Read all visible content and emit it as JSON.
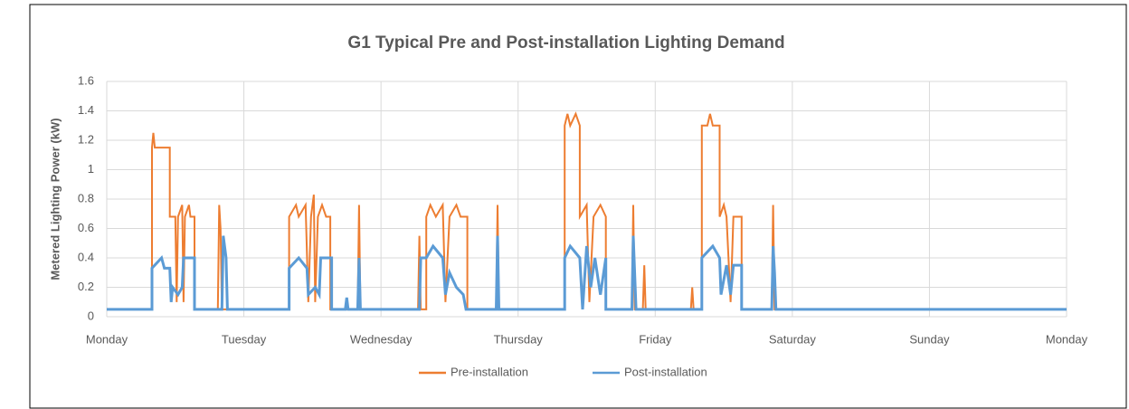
{
  "chart_data": {
    "type": "line",
    "title": "G1 Typical Pre and Post-installation Lighting Demand",
    "ylabel": "Metered Lighting Power (kW)",
    "xlim": [
      0,
      7
    ],
    "ylim": [
      0,
      1.6
    ],
    "xticks": [
      {
        "value": 0,
        "label": "Monday"
      },
      {
        "value": 1,
        "label": "Tuesday"
      },
      {
        "value": 2,
        "label": "Wednesday"
      },
      {
        "value": 3,
        "label": "Thursday"
      },
      {
        "value": 4,
        "label": "Friday"
      },
      {
        "value": 5,
        "label": "Saturday"
      },
      {
        "value": 6,
        "label": "Sunday"
      },
      {
        "value": 7,
        "label": "Monday"
      }
    ],
    "yticks": [
      0,
      0.2,
      0.4,
      0.6,
      0.8,
      1,
      1.2,
      1.4,
      1.6
    ],
    "grid": true,
    "legend": "bottom",
    "series": [
      {
        "name": "Pre-installation",
        "color": "#ed7d31",
        "x": [
          0,
          0.33,
          0.33,
          0.34,
          0.35,
          0.46,
          0.46,
          0.5,
          0.51,
          0.52,
          0.55,
          0.56,
          0.57,
          0.6,
          0.61,
          0.64,
          0.64,
          0.81,
          0.82,
          0.83,
          0.84,
          1.33,
          1.33,
          1.38,
          1.4,
          1.45,
          1.47,
          1.49,
          1.51,
          1.52,
          1.54,
          1.57,
          1.6,
          1.63,
          1.63,
          1.83,
          1.84,
          1.85,
          2.27,
          2.28,
          2.29,
          2.33,
          2.33,
          2.36,
          2.4,
          2.45,
          2.47,
          2.5,
          2.55,
          2.58,
          2.63,
          2.63,
          2.84,
          2.85,
          2.86,
          3.34,
          3.34,
          3.36,
          3.38,
          3.42,
          3.45,
          3.45,
          3.5,
          3.52,
          3.55,
          3.6,
          3.64,
          3.64,
          3.83,
          3.84,
          3.85,
          3.91,
          3.92,
          3.93,
          4.26,
          4.27,
          4.28,
          4.34,
          4.34,
          4.38,
          4.4,
          4.42,
          4.47,
          4.47,
          4.5,
          4.52,
          4.55,
          4.57,
          4.63,
          4.63,
          4.85,
          4.86,
          4.87,
          7
        ],
        "values": [
          0.05,
          0.05,
          1.15,
          1.25,
          1.15,
          1.15,
          0.68,
          0.68,
          0.1,
          0.68,
          0.76,
          0.1,
          0.68,
          0.76,
          0.68,
          0.68,
          0.05,
          0.05,
          0.76,
          0.6,
          0.05,
          0.05,
          0.68,
          0.76,
          0.68,
          0.76,
          0.1,
          0.68,
          0.83,
          0.1,
          0.68,
          0.76,
          0.68,
          0.68,
          0.05,
          0.05,
          0.76,
          0.05,
          0.05,
          0.55,
          0.05,
          0.05,
          0.68,
          0.76,
          0.68,
          0.76,
          0.1,
          0.68,
          0.76,
          0.68,
          0.68,
          0.05,
          0.05,
          0.76,
          0.05,
          0.05,
          1.3,
          1.38,
          1.3,
          1.38,
          1.3,
          0.68,
          0.76,
          0.1,
          0.68,
          0.76,
          0.68,
          0.05,
          0.05,
          0.76,
          0.05,
          0.05,
          0.35,
          0.05,
          0.05,
          0.2,
          0.05,
          0.05,
          1.3,
          1.3,
          1.38,
          1.3,
          1.3,
          0.68,
          0.76,
          0.68,
          0.1,
          0.68,
          0.68,
          0.05,
          0.05,
          0.76,
          0.05,
          0.05
        ]
      },
      {
        "name": "Post-installation",
        "color": "#5b9bd5",
        "x": [
          0,
          0.33,
          0.33,
          0.4,
          0.42,
          0.46,
          0.47,
          0.48,
          0.52,
          0.55,
          0.56,
          0.64,
          0.64,
          0.84,
          0.85,
          0.87,
          0.88,
          1.33,
          1.33,
          1.4,
          1.46,
          1.47,
          1.52,
          1.55,
          1.56,
          1.64,
          1.64,
          1.74,
          1.75,
          1.76,
          1.83,
          1.84,
          1.85,
          2.28,
          2.29,
          2.33,
          2.38,
          2.45,
          2.47,
          2.5,
          2.55,
          2.6,
          2.62,
          2.84,
          2.85,
          2.86,
          3.34,
          3.34,
          3.38,
          3.45,
          3.47,
          3.5,
          3.53,
          3.56,
          3.6,
          3.64,
          3.64,
          3.83,
          3.84,
          3.86,
          4.34,
          4.34,
          4.42,
          4.47,
          4.48,
          4.52,
          4.55,
          4.57,
          4.63,
          4.63,
          4.85,
          4.86,
          4.87,
          4.88,
          7
        ],
        "values": [
          0.05,
          0.05,
          0.33,
          0.4,
          0.33,
          0.33,
          0.1,
          0.2,
          0.15,
          0.2,
          0.4,
          0.4,
          0.05,
          0.05,
          0.55,
          0.4,
          0.05,
          0.05,
          0.33,
          0.4,
          0.33,
          0.15,
          0.2,
          0.15,
          0.4,
          0.4,
          0.05,
          0.05,
          0.13,
          0.05,
          0.05,
          0.4,
          0.05,
          0.05,
          0.4,
          0.4,
          0.48,
          0.4,
          0.15,
          0.3,
          0.2,
          0.15,
          0.05,
          0.05,
          0.55,
          0.05,
          0.05,
          0.4,
          0.48,
          0.4,
          0.05,
          0.48,
          0.2,
          0.4,
          0.15,
          0.4,
          0.05,
          0.05,
          0.55,
          0.05,
          0.05,
          0.4,
          0.48,
          0.4,
          0.15,
          0.35,
          0.15,
          0.35,
          0.35,
          0.05,
          0.05,
          0.48,
          0.3,
          0.05,
          0.05
        ]
      }
    ]
  }
}
